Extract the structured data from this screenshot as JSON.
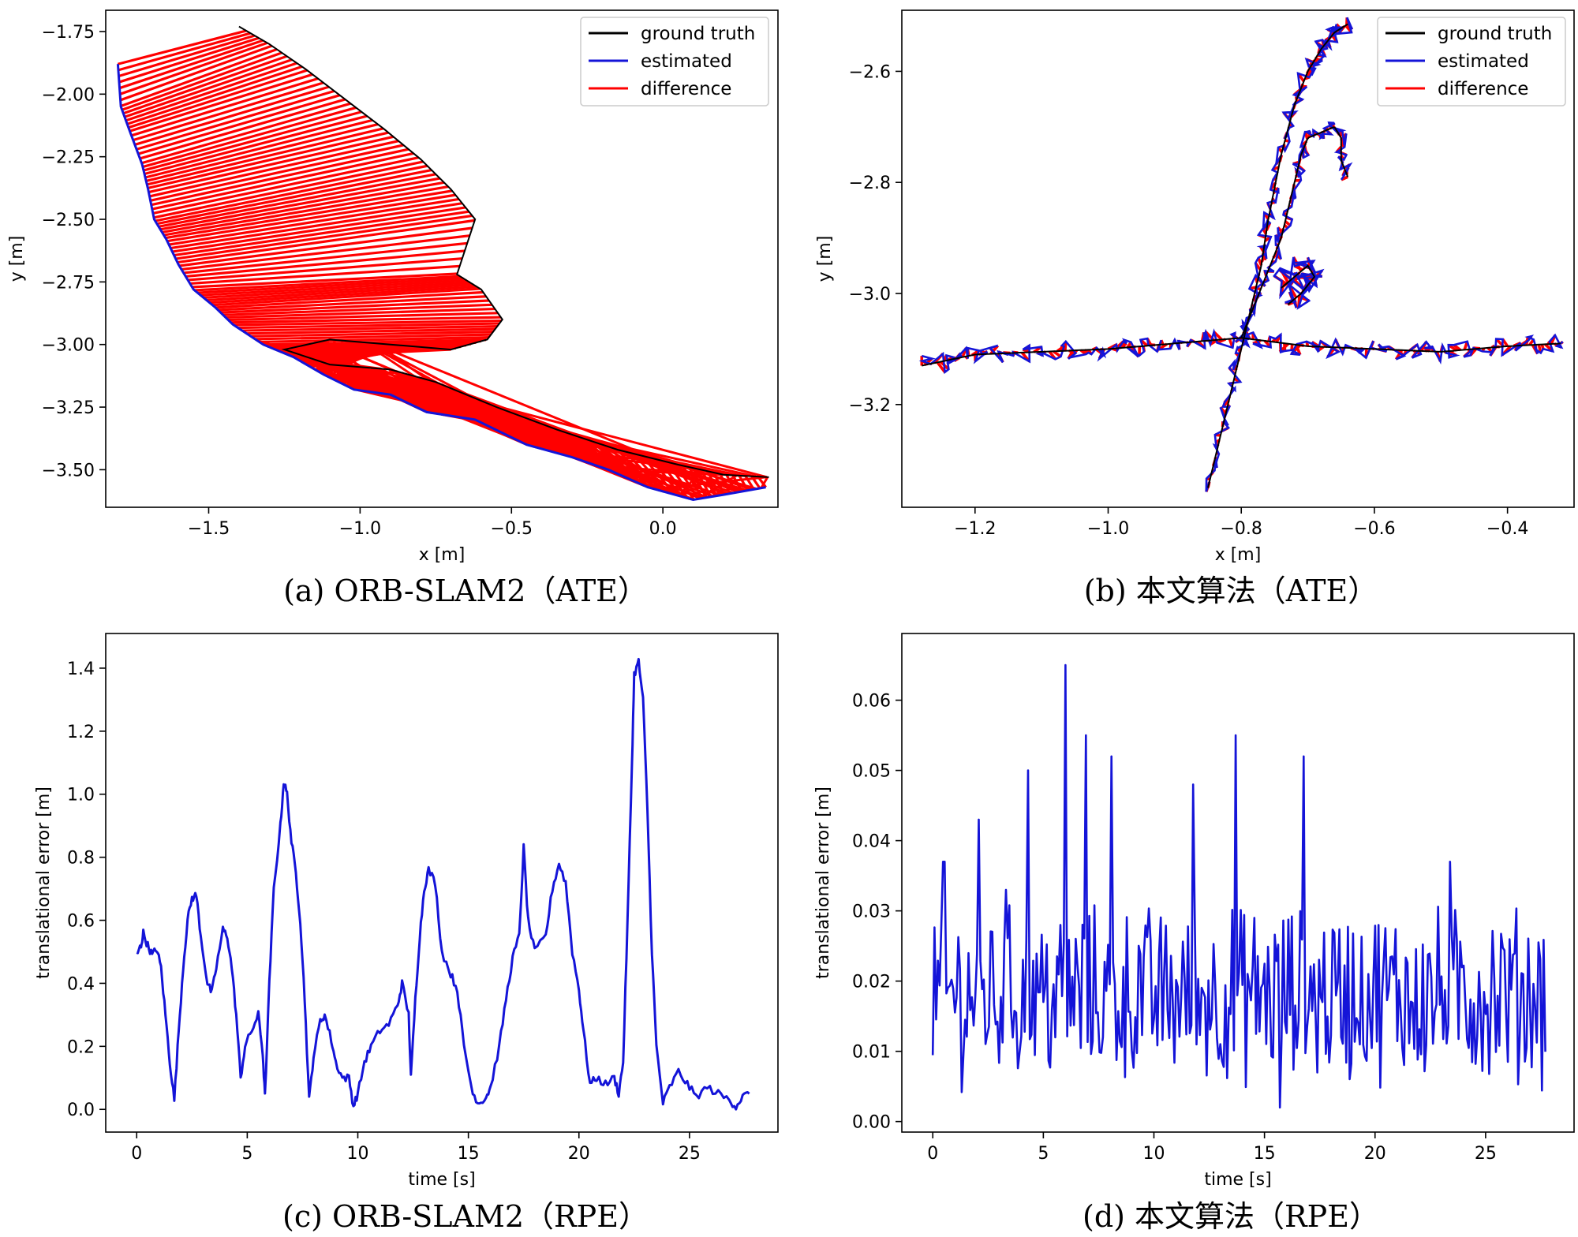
{
  "colors": {
    "ground_truth": "#000000",
    "estimated": "#1414d8",
    "difference": "#ff0000"
  },
  "legend_entries": [
    "ground truth",
    "estimated",
    "difference"
  ],
  "chart_data": [
    {
      "id": "a",
      "type": "line",
      "caption": "(a) ORB-SLAM2（ATE）",
      "xlabel": "x [m]",
      "ylabel": "y [m]",
      "xlim": [
        -1.84,
        0.38
      ],
      "ylim": [
        -3.65,
        -1.665
      ],
      "xticks": [
        -1.5,
        -1.0,
        -0.5,
        0.0
      ],
      "xtick_labels": [
        "−1.5",
        "−1.0",
        "−0.5",
        "0.0"
      ],
      "yticks": [
        -1.75,
        -2.0,
        -2.25,
        -2.5,
        -2.75,
        -3.0,
        -3.25,
        -3.5
      ],
      "ytick_labels": [
        "−1.75",
        "−2.00",
        "−2.25",
        "−2.50",
        "−2.75",
        "−3.00",
        "−3.25",
        "−3.50"
      ],
      "legend": {
        "position": "top-right",
        "entries": [
          "ground truth",
          "estimated",
          "difference"
        ]
      },
      "estimated": [
        [
          -1.8,
          -1.88
        ],
        [
          -1.79,
          -2.05
        ],
        [
          -1.76,
          -2.15
        ],
        [
          -1.72,
          -2.28
        ],
        [
          -1.7,
          -2.38
        ],
        [
          -1.68,
          -2.5
        ],
        [
          -1.64,
          -2.58
        ],
        [
          -1.6,
          -2.68
        ],
        [
          -1.55,
          -2.78
        ],
        [
          -1.48,
          -2.85
        ],
        [
          -1.42,
          -2.92
        ],
        [
          -1.32,
          -3.0
        ],
        [
          -1.22,
          -3.05
        ],
        [
          -1.12,
          -3.12
        ],
        [
          -1.02,
          -3.18
        ],
        [
          -0.9,
          -3.2
        ],
        [
          -0.78,
          -3.27
        ],
        [
          -0.62,
          -3.3
        ],
        [
          -0.45,
          -3.4
        ],
        [
          -0.3,
          -3.45
        ],
        [
          -0.18,
          -3.5
        ],
        [
          -0.05,
          -3.57
        ],
        [
          0.1,
          -3.62
        ],
        [
          0.2,
          -3.6
        ],
        [
          0.34,
          -3.57
        ]
      ],
      "ground_truth": [
        [
          -1.4,
          -1.73
        ],
        [
          -1.3,
          -1.8
        ],
        [
          -1.18,
          -1.9
        ],
        [
          -1.05,
          -2.02
        ],
        [
          -0.92,
          -2.14
        ],
        [
          -0.8,
          -2.26
        ],
        [
          -0.7,
          -2.38
        ],
        [
          -0.62,
          -2.5
        ],
        [
          -0.68,
          -2.72
        ],
        [
          -0.6,
          -2.78
        ],
        [
          -0.53,
          -2.9
        ],
        [
          -0.58,
          -2.98
        ],
        [
          -0.7,
          -3.02
        ],
        [
          -0.9,
          -3.0
        ],
        [
          -1.1,
          -2.98
        ],
        [
          -1.25,
          -3.02
        ],
        [
          -1.1,
          -3.08
        ],
        [
          -0.9,
          -3.1
        ],
        [
          -0.75,
          -3.15
        ],
        [
          -0.55,
          -3.25
        ],
        [
          -0.35,
          -3.34
        ],
        [
          -0.15,
          -3.42
        ],
        [
          0.05,
          -3.48
        ],
        [
          0.2,
          -3.52
        ],
        [
          0.35,
          -3.53
        ]
      ],
      "difference_note": "red segments connect estimated and ground-truth poses"
    },
    {
      "id": "b",
      "type": "line",
      "caption": "(b) 本文算法（ATE）",
      "xlabel": "x [m]",
      "ylabel": "y [m]",
      "xlim": [
        -1.31,
        -0.3
      ],
      "ylim": [
        -3.385,
        -2.49
      ],
      "xticks": [
        -1.2,
        -1.0,
        -0.8,
        -0.6,
        -0.4
      ],
      "xtick_labels": [
        "−1.2",
        "−1.0",
        "−0.8",
        "−0.6",
        "−0.4"
      ],
      "yticks": [
        -2.6,
        -2.8,
        -3.0,
        -3.2
      ],
      "ytick_labels": [
        "−2.6",
        "−2.8",
        "−3.0",
        "−3.2"
      ],
      "legend": {
        "position": "top-right",
        "entries": [
          "ground truth",
          "estimated",
          "difference"
        ]
      },
      "ground_truth": [
        [
          -0.85,
          -3.35
        ],
        [
          -0.83,
          -3.25
        ],
        [
          -0.81,
          -3.15
        ],
        [
          -0.79,
          -3.05
        ],
        [
          -0.77,
          -2.95
        ],
        [
          -0.76,
          -2.87
        ],
        [
          -0.74,
          -2.75
        ],
        [
          -0.72,
          -2.66
        ],
        [
          -0.7,
          -2.6
        ],
        [
          -0.68,
          -2.56
        ],
        [
          -0.66,
          -2.53
        ],
        [
          -0.64,
          -2.515
        ]
      ],
      "branch": [
        [
          -0.8,
          -3.08
        ],
        [
          -0.78,
          -3.02
        ],
        [
          -0.76,
          -2.96
        ],
        [
          -0.74,
          -2.9
        ],
        [
          -0.73,
          -2.85
        ],
        [
          -0.72,
          -2.8
        ],
        [
          -0.71,
          -2.75
        ],
        [
          -0.7,
          -2.72
        ],
        [
          -0.68,
          -2.71
        ],
        [
          -0.66,
          -2.7
        ],
        [
          -0.65,
          -2.72
        ],
        [
          -0.65,
          -2.76
        ],
        [
          -0.64,
          -2.79
        ]
      ],
      "horizontal": [
        [
          -1.28,
          -3.13
        ],
        [
          -1.2,
          -3.11
        ],
        [
          -1.1,
          -3.105
        ],
        [
          -1.0,
          -3.1
        ],
        [
          -0.9,
          -3.09
        ],
        [
          -0.8,
          -3.08
        ],
        [
          -0.7,
          -3.095
        ],
        [
          -0.6,
          -3.1
        ],
        [
          -0.5,
          -3.105
        ],
        [
          -0.4,
          -3.095
        ],
        [
          -0.32,
          -3.09
        ]
      ],
      "blob": [
        [
          -0.74,
          -2.99
        ],
        [
          -0.72,
          -2.97
        ],
        [
          -0.7,
          -2.95
        ],
        [
          -0.69,
          -2.97
        ],
        [
          -0.71,
          -3.0
        ],
        [
          -0.73,
          -3.02
        ]
      ]
    },
    {
      "id": "c",
      "type": "line",
      "caption": "(c) ORB-SLAM2（RPE）",
      "xlabel": "time [s]",
      "ylabel": "translational error [m]",
      "xlim": [
        -1.4,
        29.0
      ],
      "ylim": [
        -0.072,
        1.51
      ],
      "xticks": [
        0,
        5,
        10,
        15,
        20,
        25
      ],
      "xtick_labels": [
        "0",
        "5",
        "10",
        "15",
        "20",
        "25"
      ],
      "yticks": [
        0.0,
        0.2,
        0.4,
        0.6,
        0.8,
        1.0,
        1.2,
        1.4
      ],
      "ytick_labels": [
        "0.0",
        "0.2",
        "0.4",
        "0.6",
        "0.8",
        "1.0",
        "1.2",
        "1.4"
      ],
      "series": [
        {
          "name": "estimated",
          "keyframes": [
            [
              0.0,
              0.49
            ],
            [
              0.2,
              0.52
            ],
            [
              0.3,
              0.56
            ],
            [
              0.5,
              0.52
            ],
            [
              0.7,
              0.49
            ],
            [
              0.9,
              0.51
            ],
            [
              1.1,
              0.45
            ],
            [
              1.3,
              0.3
            ],
            [
              1.5,
              0.15
            ],
            [
              1.7,
              0.03
            ],
            [
              1.9,
              0.25
            ],
            [
              2.1,
              0.45
            ],
            [
              2.3,
              0.6
            ],
            [
              2.5,
              0.67
            ],
            [
              2.7,
              0.68
            ],
            [
              2.9,
              0.55
            ],
            [
              3.2,
              0.4
            ],
            [
              3.4,
              0.37
            ],
            [
              3.6,
              0.45
            ],
            [
              3.9,
              0.57
            ],
            [
              4.1,
              0.55
            ],
            [
              4.3,
              0.45
            ],
            [
              4.5,
              0.3
            ],
            [
              4.7,
              0.1
            ],
            [
              4.9,
              0.2
            ],
            [
              5.2,
              0.25
            ],
            [
              5.5,
              0.3
            ],
            [
              5.7,
              0.18
            ],
            [
              5.8,
              0.04
            ],
            [
              6.0,
              0.4
            ],
            [
              6.2,
              0.7
            ],
            [
              6.5,
              0.9
            ],
            [
              6.65,
              1.04
            ],
            [
              6.8,
              1.0
            ],
            [
              7.0,
              0.85
            ],
            [
              7.2,
              0.75
            ],
            [
              7.4,
              0.6
            ],
            [
              7.6,
              0.35
            ],
            [
              7.8,
              0.03
            ],
            [
              8.0,
              0.17
            ],
            [
              8.3,
              0.28
            ],
            [
              8.5,
              0.3
            ],
            [
              8.8,
              0.22
            ],
            [
              9.0,
              0.15
            ],
            [
              9.3,
              0.1
            ],
            [
              9.6,
              0.1
            ],
            [
              9.8,
              0.01
            ],
            [
              10.0,
              0.05
            ],
            [
              10.3,
              0.15
            ],
            [
              10.6,
              0.2
            ],
            [
              11.0,
              0.25
            ],
            [
              11.4,
              0.27
            ],
            [
              11.8,
              0.33
            ],
            [
              12.0,
              0.4
            ],
            [
              12.3,
              0.3
            ],
            [
              12.4,
              0.1
            ],
            [
              12.6,
              0.35
            ],
            [
              12.8,
              0.55
            ],
            [
              13.0,
              0.7
            ],
            [
              13.2,
              0.76
            ],
            [
              13.5,
              0.72
            ],
            [
              13.8,
              0.5
            ],
            [
              14.2,
              0.43
            ],
            [
              14.5,
              0.38
            ],
            [
              14.8,
              0.2
            ],
            [
              15.2,
              0.05
            ],
            [
              15.5,
              0.02
            ],
            [
              15.8,
              0.04
            ],
            [
              16.0,
              0.07
            ],
            [
              16.4,
              0.2
            ],
            [
              16.7,
              0.35
            ],
            [
              17.0,
              0.48
            ],
            [
              17.3,
              0.55
            ],
            [
              17.5,
              0.83
            ],
            [
              17.7,
              0.6
            ],
            [
              18.0,
              0.5
            ],
            [
              18.5,
              0.55
            ],
            [
              18.8,
              0.7
            ],
            [
              19.1,
              0.78
            ],
            [
              19.4,
              0.72
            ],
            [
              19.7,
              0.5
            ],
            [
              20.0,
              0.38
            ],
            [
              20.2,
              0.25
            ],
            [
              20.5,
              0.08
            ],
            [
              20.8,
              0.1
            ],
            [
              21.2,
              0.08
            ],
            [
              21.6,
              0.1
            ],
            [
              21.8,
              0.05
            ],
            [
              22.0,
              0.15
            ],
            [
              22.2,
              0.6
            ],
            [
              22.4,
              1.1
            ],
            [
              22.5,
              1.38
            ],
            [
              22.7,
              1.42
            ],
            [
              22.9,
              1.3
            ],
            [
              23.1,
              0.95
            ],
            [
              23.3,
              0.5
            ],
            [
              23.5,
              0.2
            ],
            [
              23.8,
              0.02
            ],
            [
              24.1,
              0.07
            ],
            [
              24.5,
              0.12
            ],
            [
              24.9,
              0.08
            ],
            [
              25.3,
              0.04
            ],
            [
              25.8,
              0.07
            ],
            [
              26.3,
              0.05
            ],
            [
              26.8,
              0.03
            ],
            [
              27.1,
              0.01
            ],
            [
              27.4,
              0.04
            ],
            [
              27.7,
              0.05
            ]
          ]
        }
      ]
    },
    {
      "id": "d",
      "type": "line",
      "caption": "(d) 本文算法（RPE）",
      "xlabel": "time [s]",
      "ylabel": "translational error [m]",
      "xlim": [
        -1.4,
        29.0
      ],
      "ylim": [
        -0.0015,
        0.0695
      ],
      "xticks": [
        0,
        5,
        10,
        15,
        20,
        25
      ],
      "xtick_labels": [
        "0",
        "5",
        "10",
        "15",
        "20",
        "25"
      ],
      "yticks": [
        0.0,
        0.01,
        0.02,
        0.03,
        0.04,
        0.05,
        0.06
      ],
      "ytick_labels": [
        "0.00",
        "0.01",
        "0.02",
        "0.03",
        "0.04",
        "0.05",
        "0.06"
      ],
      "series": [
        {
          "name": "estimated",
          "duration": 27.7,
          "mean": 0.018,
          "amplitude": 0.011,
          "samples": 360,
          "peaks": [
            [
              6.0,
              0.065
            ],
            [
              6.9,
              0.055
            ],
            [
              8.1,
              0.052
            ],
            [
              13.7,
              0.055
            ],
            [
              16.8,
              0.052
            ],
            [
              4.3,
              0.05
            ],
            [
              11.8,
              0.048
            ],
            [
              23.4,
              0.037
            ],
            [
              2.1,
              0.043
            ],
            [
              0.5,
              0.037
            ],
            [
              15.7,
              0.002
            ],
            [
              3.3,
              0.033
            ]
          ]
        }
      ]
    }
  ]
}
